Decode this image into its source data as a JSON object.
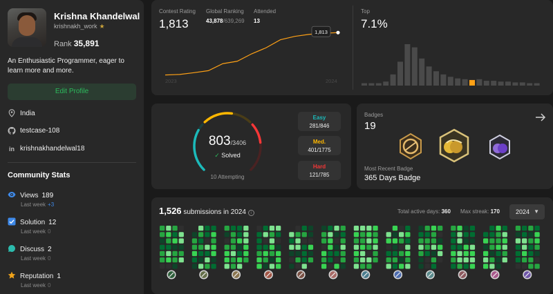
{
  "profile": {
    "name": "Krishna Khandelwal",
    "handle": "krishnakh_work",
    "rank_label": "Rank",
    "rank_value": "35,891",
    "bio": "An Enthusiastic Programmer, eager to learn more and more.",
    "edit_label": "Edit Profile",
    "location": "India",
    "github": "testcase-108",
    "linkedin": "krishnakhandelwal18"
  },
  "community": {
    "title": "Community Stats",
    "items": [
      {
        "label": "Views",
        "value": "189",
        "sub": "Last week",
        "delta": "+3",
        "color": "#3e89e8"
      },
      {
        "label": "Solution",
        "value": "12",
        "sub": "Last week",
        "delta": "0",
        "color": "#3e89e8"
      },
      {
        "label": "Discuss",
        "value": "2",
        "sub": "Last week",
        "delta": "0",
        "color": "#2cbbad"
      },
      {
        "label": "Reputation",
        "value": "1",
        "sub": "Last week",
        "delta": "0",
        "color": "#f0a31a"
      }
    ]
  },
  "contest": {
    "rating_label": "Contest Rating",
    "rating_value": "1,813",
    "global_label": "Global Ranking",
    "global_value": "43,878",
    "global_total": "/639,269",
    "attended_label": "Attended",
    "attended_value": "13",
    "top_label": "Top",
    "top_value": "7.1%",
    "tooltip": "1,813",
    "year_start": "2023",
    "year_end": "2024"
  },
  "chart_data": [
    {
      "type": "line",
      "title": "Contest Rating",
      "x": [
        1,
        2,
        3,
        4,
        5,
        6,
        7,
        8,
        9,
        10,
        11,
        12,
        13
      ],
      "values": [
        1498,
        1502,
        1515,
        1530,
        1582,
        1600,
        1655,
        1700,
        1760,
        1785,
        1800,
        1808,
        1813
      ],
      "ylim": [
        1450,
        1850
      ],
      "color": "#ffa116"
    },
    {
      "type": "bar",
      "title": "Top",
      "values": [
        3,
        3,
        3,
        5,
        14,
        30,
        52,
        48,
        34,
        24,
        18,
        14,
        11,
        9,
        8,
        7,
        8,
        6,
        6,
        5,
        5,
        4,
        4,
        3,
        3
      ],
      "highlight_index": 15,
      "color": "#4a4a4a",
      "highlight_color": "#ffa116"
    }
  ],
  "problems": {
    "solved": "803",
    "total": "/3406",
    "solved_label": "Solved",
    "attempting": "10 Attempting",
    "easy_label": "Easy",
    "easy_count": "281/846",
    "easy_fraction": 0.332,
    "medium_label": "Med.",
    "medium_count": "401/1775",
    "medium_fraction": 0.226,
    "hard_label": "Hard",
    "hard_count": "121/785",
    "hard_fraction": 0.154,
    "colors": {
      "easy": "#1cbaba",
      "medium": "#ffb700",
      "hard": "#f63737"
    }
  },
  "badges": {
    "label": "Badges",
    "count": "19",
    "recent_label": "Most Recent Badge",
    "recent_name": "365 Days Badge",
    "icons": [
      "50-days-badge-icon",
      "365-days-badge-icon",
      "contest-badge-icon"
    ]
  },
  "submissions": {
    "count": "1,526",
    "label": "submissions in 2024",
    "active_label": "Total active days:",
    "active_value": "360",
    "streak_label": "Max streak:",
    "streak_value": "170",
    "year": "2024",
    "months": 12,
    "month_icon_colors": [
      "#2e5f3b",
      "#66704a",
      "#8b7650",
      "#a25646",
      "#7a5144",
      "#a86a66",
      "#4b7d8e",
      "#4d6cb0",
      "#5a8b8c",
      "#8d5a5f",
      "#a8598c",
      "#6e55a8"
    ]
  }
}
